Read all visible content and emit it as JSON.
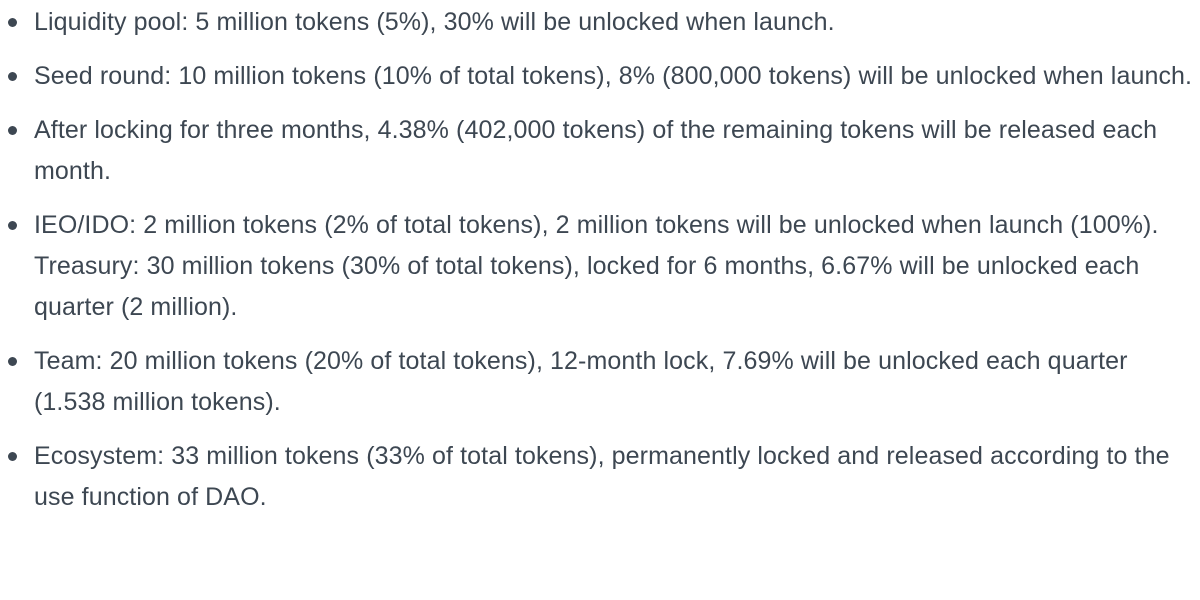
{
  "items": [
    {
      "lines": [
        "Liquidity pool: 5 million tokens (5%), 30% will be unlocked when launch."
      ]
    },
    {
      "lines": [
        "Seed round: 10 million tokens (10% of total tokens), 8% (800,000 tokens) will be unlocked when launch."
      ]
    },
    {
      "lines": [
        "After locking for three months, 4.38% (402,000 tokens) of the remaining tokens will be released each month."
      ]
    },
    {
      "lines": [
        "IEO/IDO: 2 million tokens (2% of total tokens), 2 million tokens will be unlocked when launch (100%).",
        "Treasury: 30 million tokens (30% of total tokens), locked for 6 months, 6.67% will be unlocked each quarter (2 million)."
      ]
    },
    {
      "lines": [
        "Team: 20 million tokens (20% of total tokens), 12-month lock, 7.69% will be unlocked each quarter (1.538 million tokens)."
      ]
    },
    {
      "lines": [
        "Ecosystem: 33 million tokens (33% of total tokens), permanently locked and released according to the use function of DAO."
      ]
    }
  ],
  "colors": {
    "text": "#3d4752",
    "background": "#ffffff"
  }
}
